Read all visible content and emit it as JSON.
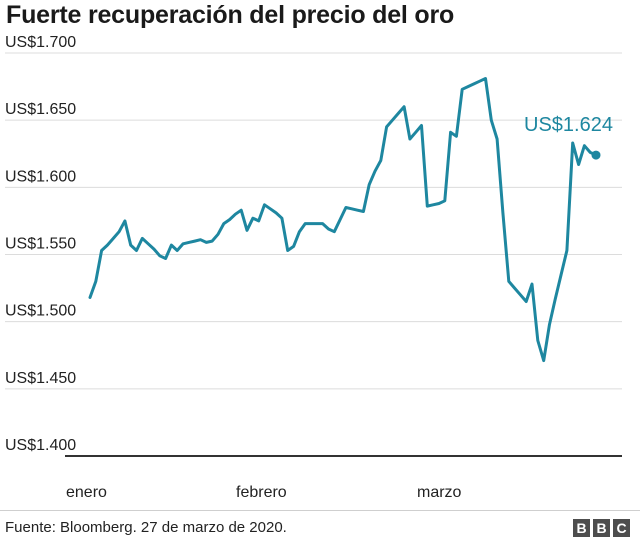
{
  "chart_data": {
    "type": "line",
    "title": "Fuerte recuperación del precio del oro",
    "y_ticks": [
      "US$1.700",
      "US$1.650",
      "US$1.600",
      "US$1.550",
      "US$1.500",
      "US$1.450",
      "US$1.400"
    ],
    "ylim": [
      1400,
      1700
    ],
    "x_ticks": [
      "enero",
      "febrero",
      "marzo"
    ],
    "annotation": "US$1.624",
    "grid": true,
    "color": "#1e87a0",
    "series": [
      {
        "values": [
          1518,
          1530,
          1553,
          1557,
          1562,
          1567,
          1575,
          1557,
          1553,
          1562,
          1558,
          1554,
          1549,
          1547,
          1557,
          1553,
          1558,
          1559,
          1560,
          1561,
          1559,
          1560,
          1565,
          1573,
          1576,
          1580,
          1583,
          1568,
          1577,
          1575,
          1587,
          1584,
          1581,
          1577,
          1553,
          1556,
          1567,
          1573,
          1573,
          1573,
          1573,
          1569,
          1567,
          1576,
          1585,
          1584,
          1583,
          1582,
          1602,
          1612,
          1620,
          1645,
          1650,
          1655,
          1660,
          1636,
          1641,
          1646,
          1586,
          1587,
          1588,
          1590,
          1641,
          1638,
          1673,
          1675,
          1677,
          1679,
          1681,
          1650,
          1636,
          1581,
          1530,
          1525,
          1520,
          1515,
          1528,
          1486,
          1471,
          1498,
          1517,
          1535,
          1553,
          1633,
          1617,
          1631,
          1626,
          1624
        ]
      }
    ]
  },
  "source": "Fuente: Bloomberg. 27 de marzo de 2020.",
  "logo_letters": [
    "B",
    "B",
    "C"
  ]
}
